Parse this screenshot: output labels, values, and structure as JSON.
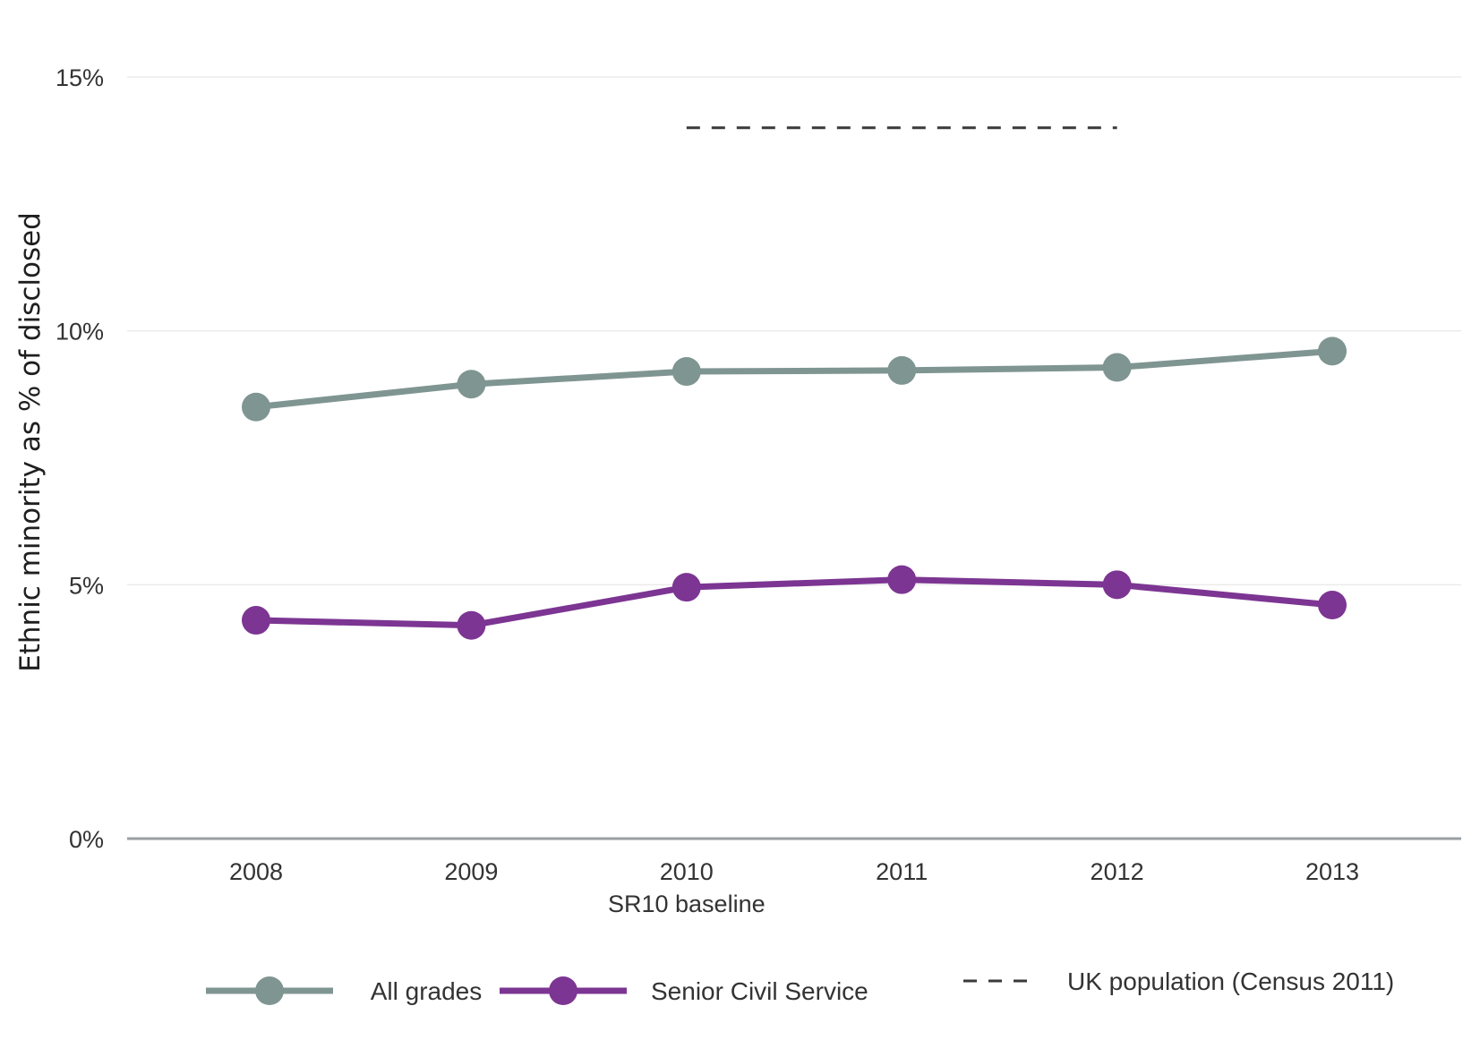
{
  "chart_data": {
    "type": "line",
    "title": "",
    "ylabel": "Ethnic minority as % of disclosed",
    "xlabel": "",
    "categories": [
      "2008",
      "2009",
      "2010",
      "2011",
      "2012",
      "2013"
    ],
    "x_sublabels": [
      "",
      "",
      "SR10 baseline",
      "",
      "",
      ""
    ],
    "ylim": [
      0,
      15
    ],
    "yticks": [
      0,
      5,
      10,
      15
    ],
    "ytick_labels": [
      "0%",
      "5%",
      "10%",
      "15%"
    ],
    "grid": true,
    "series": [
      {
        "name": "All grades",
        "values": [
          8.5,
          8.95,
          9.2,
          9.22,
          9.28,
          9.6
        ],
        "color": "#7f9592",
        "marker": "circle"
      },
      {
        "name": "Senior Civil Service",
        "values": [
          4.3,
          4.2,
          4.95,
          5.1,
          5.0,
          4.6
        ],
        "color": "#7c3592",
        "marker": "circle"
      }
    ],
    "reference_lines": [
      {
        "name": "UK population (Census 2011)",
        "value": 14.0,
        "x_range": [
          "2010",
          "2012"
        ],
        "style": "dashed",
        "color": "#3a3a3a"
      }
    ],
    "legend_position": "bottom"
  }
}
